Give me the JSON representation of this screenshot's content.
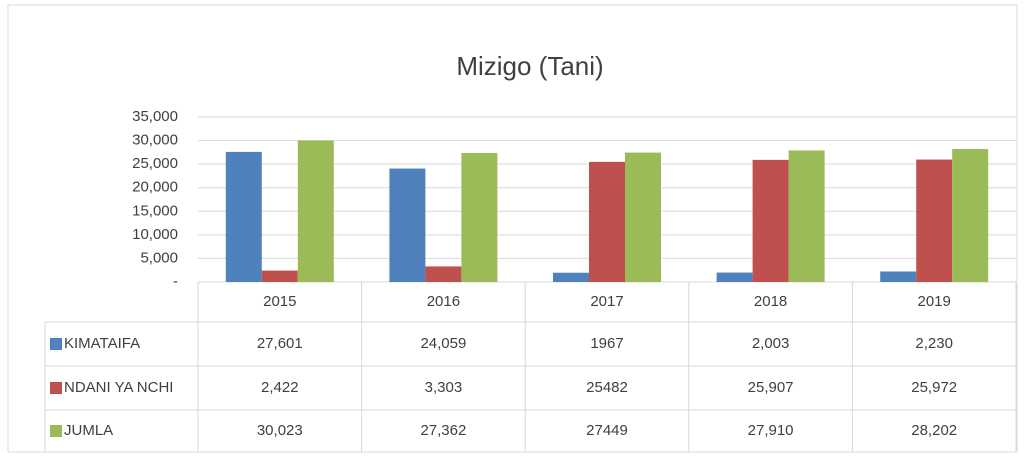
{
  "chart_data": {
    "type": "bar",
    "title": "Mizigo (Tani)",
    "categories": [
      "2015",
      "2016",
      "2017",
      "2018",
      "2019"
    ],
    "series": [
      {
        "name": "KIMATAIFA",
        "color": "#4f81bd",
        "values": [
          27601,
          24059,
          1967,
          2003,
          2230
        ],
        "value_labels": [
          "27,601",
          "24,059",
          "1967",
          "2,003",
          "2,230"
        ]
      },
      {
        "name": "NDANI YA NCHI",
        "color": "#c0504d",
        "values": [
          2422,
          3303,
          25482,
          25907,
          25972
        ],
        "value_labels": [
          "2,422",
          "3,303",
          "25482",
          "25,907",
          "25,972"
        ]
      },
      {
        "name": "JUMLA",
        "color": "#9bbb59",
        "values": [
          30023,
          27362,
          27449,
          27910,
          28202
        ],
        "value_labels": [
          "30,023",
          "27,362",
          "27449",
          "27,910",
          "28,202"
        ]
      }
    ],
    "ylim": [
      0,
      35000
    ],
    "yticks": [
      {
        "value": 0,
        "label": "-"
      },
      {
        "value": 5000,
        "label": "5,000"
      },
      {
        "value": 10000,
        "label": "10,000"
      },
      {
        "value": 15000,
        "label": "15,000"
      },
      {
        "value": 20000,
        "label": "20,000"
      },
      {
        "value": 25000,
        "label": "25,000"
      },
      {
        "value": 30000,
        "label": "30,000"
      },
      {
        "value": 35000,
        "label": "35,000"
      }
    ],
    "grid": true
  }
}
